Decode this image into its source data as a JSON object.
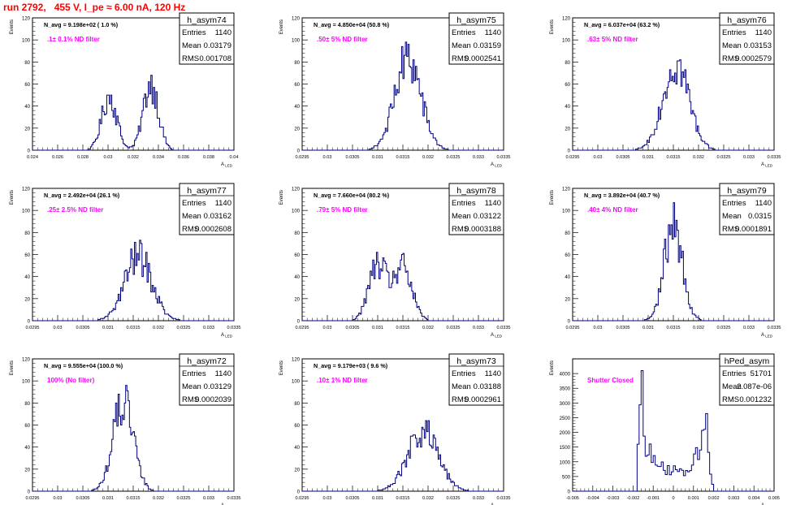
{
  "header": {
    "title": "run 2792,   455 V, I_pe ≈ 6.00 nA, 120 Hz"
  },
  "colors": {
    "histogram_line": "#000080",
    "header_text": "#ff0000",
    "filter_label": "#ff00ff",
    "stats_border": "#000000"
  },
  "ylabel": "Events",
  "xlabel_main": "A",
  "xlabel_sub": "LED",
  "chart_data": [
    {
      "type": "histogram",
      "histname": "h_asym74",
      "navg": "N_avg = 9.198e+02 ( 1.0 %)",
      "filter": ".1± 0.1% ND filter",
      "stats": [
        [
          "Entries",
          "1140"
        ],
        [
          "Mean",
          "0.03179"
        ],
        [
          "RMS",
          "0.001708"
        ]
      ],
      "xlim": [
        0.024,
        0.04
      ],
      "ylim": [
        0,
        120
      ],
      "xticks": [
        "0.024",
        "0.026",
        "0.028",
        "0.03",
        "0.032",
        "0.034",
        "0.036",
        "0.038",
        "0.04"
      ],
      "yticks": [
        "0",
        "20",
        "40",
        "60",
        "80",
        "100",
        "120"
      ],
      "peaks": [
        {
          "x": 0.0301,
          "w": 0.0006,
          "h": 40
        },
        {
          "x": 0.0334,
          "w": 0.0006,
          "h": 50
        }
      ],
      "maxpeak": 68
    },
    {
      "type": "histogram",
      "histname": "h_asym75",
      "navg": "N_avg = 4.850e+04 (50.8 %)",
      "filter": ".50± 5% ND filter",
      "stats": [
        [
          "Entries",
          "1140"
        ],
        [
          "Mean",
          "0.03159"
        ],
        [
          "RMS",
          "0.0002541"
        ]
      ],
      "xlim": [
        0.0295,
        0.0335
      ],
      "ylim": [
        0,
        120
      ],
      "xticks": [
        "0.0295",
        "0.03",
        "0.0305",
        "0.031",
        "0.0315",
        "0.032",
        "0.0325",
        "0.033",
        "0.0335"
      ],
      "yticks": [
        "0",
        "20",
        "40",
        "60",
        "80",
        "100",
        "120"
      ],
      "peaks": [
        {
          "x": 0.0316,
          "w": 0.00026,
          "h": 80
        }
      ],
      "maxpeak": 98
    },
    {
      "type": "histogram",
      "histname": "h_asym76",
      "navg": "N_avg = 6.037e+04 (63.2 %)",
      "filter": ".63± 5% ND filter",
      "stats": [
        [
          "Entries",
          "1140"
        ],
        [
          "Mean",
          "0.03153"
        ],
        [
          "RMS",
          "0.0002579"
        ]
      ],
      "xlim": [
        0.0295,
        0.0335
      ],
      "ylim": [
        0,
        120
      ],
      "xticks": [
        "0.0295",
        "0.03",
        "0.0305",
        "0.031",
        "0.0315",
        "0.032",
        "0.0325",
        "0.033",
        "0.0335"
      ],
      "yticks": [
        "0",
        "20",
        "40",
        "60",
        "80",
        "100",
        "120"
      ],
      "peaks": [
        {
          "x": 0.03155,
          "w": 0.00026,
          "h": 74
        }
      ],
      "maxpeak": 82
    },
    {
      "type": "histogram",
      "histname": "h_asym77",
      "navg": "N_avg = 2.492e+04 (26.1 %)",
      "filter": ".25± 2.5% ND filter",
      "stats": [
        [
          "Entries",
          "1140"
        ],
        [
          "Mean",
          "0.03162"
        ],
        [
          "RMS",
          "0.0002608"
        ]
      ],
      "xlim": [
        0.0295,
        0.0335
      ],
      "ylim": [
        0,
        120
      ],
      "xticks": [
        "0.0295",
        "0.03",
        "0.0305",
        "0.031",
        "0.0315",
        "0.032",
        "0.0325",
        "0.033",
        "0.0335"
      ],
      "yticks": [
        "0",
        "20",
        "40",
        "60",
        "80",
        "100",
        "120"
      ],
      "peaks": [
        {
          "x": 0.0316,
          "w": 0.00027,
          "h": 68
        }
      ],
      "maxpeak": 73
    },
    {
      "type": "histogram",
      "histname": "h_asym78",
      "navg": "N_avg = 7.660e+04 (80.2 %)",
      "filter": ".79± 5% ND filter",
      "stats": [
        [
          "Entries",
          "1140"
        ],
        [
          "Mean",
          "0.03122"
        ],
        [
          "RMS",
          "0.0003188"
        ]
      ],
      "xlim": [
        0.0295,
        0.0335
      ],
      "ylim": [
        0,
        120
      ],
      "xticks": [
        "0.0295",
        "0.03",
        "0.0305",
        "0.031",
        "0.0315",
        "0.032",
        "0.0325",
        "0.033",
        "0.0335"
      ],
      "yticks": [
        "0",
        "20",
        "40",
        "60",
        "80",
        "100",
        "120"
      ],
      "peaks": [
        {
          "x": 0.031,
          "w": 0.00018,
          "h": 50
        },
        {
          "x": 0.0315,
          "w": 0.00018,
          "h": 48
        }
      ],
      "maxpeak": 62
    },
    {
      "type": "histogram",
      "histname": "h_asym79",
      "navg": "N_avg = 3.892e+04 (40.7 %)",
      "filter": ".40± 4% ND filter",
      "stats": [
        [
          "Entries",
          "1140"
        ],
        [
          "Mean",
          "0.0315"
        ],
        [
          "RMS",
          "0.0001891"
        ]
      ],
      "xlim": [
        0.0295,
        0.0335
      ],
      "ylim": [
        0,
        120
      ],
      "xticks": [
        "0.0295",
        "0.03",
        "0.0305",
        "0.031",
        "0.0315",
        "0.032",
        "0.0325",
        "0.033",
        "0.0335"
      ],
      "yticks": [
        "0",
        "20",
        "40",
        "60",
        "80",
        "100",
        "120"
      ],
      "peaks": [
        {
          "x": 0.0315,
          "w": 0.00018,
          "h": 92
        }
      ],
      "maxpeak": 107
    },
    {
      "type": "histogram",
      "histname": "h_asym72",
      "navg": "N_avg = 9.555e+04 (100.0 %)",
      "filter": "100% (No filter)",
      "stats": [
        [
          "Entries",
          "1140"
        ],
        [
          "Mean",
          "0.03129"
        ],
        [
          "RMS",
          "0.0002039"
        ]
      ],
      "xlim": [
        0.0295,
        0.0335
      ],
      "ylim": [
        0,
        120
      ],
      "xticks": [
        "0.0295",
        "0.03",
        "0.0305",
        "0.031",
        "0.0315",
        "0.032",
        "0.0325",
        "0.033",
        "0.0335"
      ],
      "yticks": [
        "0",
        "20",
        "40",
        "60",
        "80",
        "100",
        "120"
      ],
      "peaks": [
        {
          "x": 0.0313,
          "w": 0.0002,
          "h": 88
        }
      ],
      "maxpeak": 96
    },
    {
      "type": "histogram",
      "histname": "h_asym73",
      "navg": "N_avg = 9.179e+03 ( 9.6 %)",
      "filter": ".10± 1% ND filter",
      "stats": [
        [
          "Entries",
          "1140"
        ],
        [
          "Mean",
          "0.03188"
        ],
        [
          "RMS",
          "0.0002961"
        ]
      ],
      "xlim": [
        0.0295,
        0.0335
      ],
      "ylim": [
        0,
        120
      ],
      "xticks": [
        "0.0295",
        "0.03",
        "0.0305",
        "0.031",
        "0.0315",
        "0.032",
        "0.0325",
        "0.033",
        "0.0335"
      ],
      "yticks": [
        "0",
        "20",
        "40",
        "60",
        "80",
        "100",
        "120"
      ],
      "peaks": [
        {
          "x": 0.0319,
          "w": 0.0003,
          "h": 58
        }
      ],
      "maxpeak": 64
    },
    {
      "type": "histogram",
      "histname": "hPed_asym",
      "navg": "",
      "filter": "Shutter Closed",
      "stats": [
        [
          "Entries",
          "51701"
        ],
        [
          "Mean",
          "2.087e-06"
        ],
        [
          "RMS",
          "0.001232"
        ]
      ],
      "xlim": [
        -0.005,
        0.005
      ],
      "ylim": [
        0,
        4500
      ],
      "xticks": [
        "-0.005",
        "-0.004",
        "-0.003",
        "-0.002",
        "-0.001",
        "0",
        "0.001",
        "0.002",
        "0.003",
        "0.004",
        "0.005"
      ],
      "yticks": [
        "0",
        "500",
        "1000",
        "1500",
        "2000",
        "2500",
        "3000",
        "3500",
        "4000"
      ],
      "peaks": [
        {
          "x": -0.0016,
          "w": 0.0001,
          "h": 3800
        },
        {
          "x": -0.0012,
          "w": 0.0003,
          "h": 1000
        },
        {
          "x": 0.0,
          "w": 0.0012,
          "h": 900
        },
        {
          "x": 0.0012,
          "w": 0.00025,
          "h": 900
        },
        {
          "x": 0.0016,
          "w": 0.00012,
          "h": 2100
        }
      ],
      "xmin_active": -0.0018,
      "xmax_active": 0.002,
      "maxpeak": 4100
    }
  ]
}
